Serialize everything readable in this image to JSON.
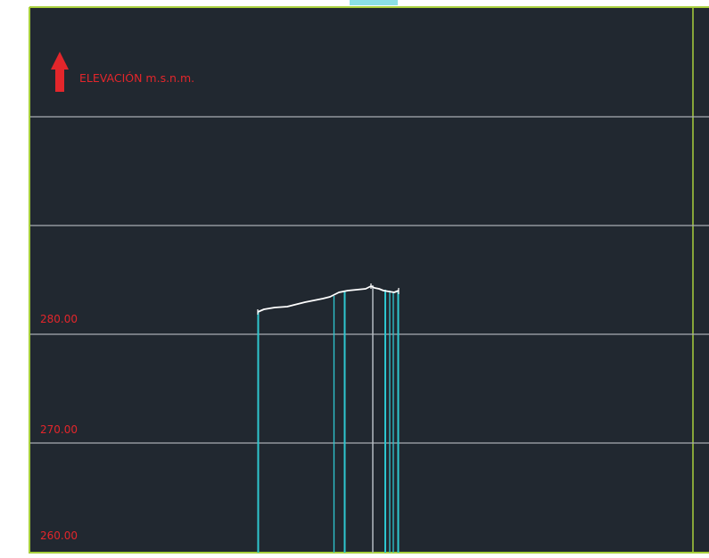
{
  "legend": {
    "text": "ELEVACIÓN m.s.n.m.",
    "arrow_icon": "arrow-up-icon",
    "color": "#e3262b"
  },
  "elevation_labels": [
    "280.00",
    "270.00",
    "260.00"
  ],
  "colors": {
    "canvas_bg": "#212830",
    "frame_green": "#a8cf3c",
    "grid_line": "#a9adb2",
    "station_line": "#2ec7d0",
    "terrain": "#ffffff",
    "center_line": "#b6bcc2",
    "label_red": "#e3262b"
  }
}
